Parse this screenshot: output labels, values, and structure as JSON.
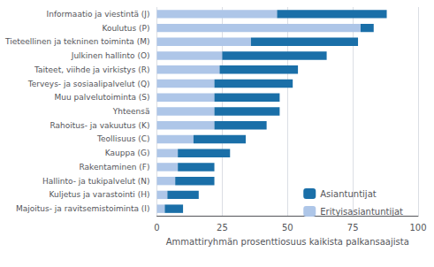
{
  "chart_data": {
    "type": "bar",
    "orientation": "horizontal",
    "stacked": true,
    "xlabel": "Ammattiryhmän prosenttiosuus kaikista palkansaajista",
    "categories": [
      "Informaatio ja viestintä (J)",
      "Koulutus (P)",
      "Tieteellinen ja tekninen toiminta (M)",
      "Julkinen hallinto (O)",
      "Taiteet, viihde ja virkistys (R)",
      "Terveys- ja sosiaalipalvelut (Q)",
      "Muu palvelutoiminta (S)",
      "Yhteensä",
      "Rahoitus- ja vakuutus (K)",
      "Teollisuus (C)",
      "Kauppa (G)",
      "Rakentaminen (F)",
      "Hallinto- ja tukipalvelut (N)",
      "Kuljetus ja varastointi (H)",
      "Majoitus- ja ravitsemistoiminta (I)"
    ],
    "series": [
      {
        "name": "Erityisasiantuntijat",
        "color": "#aec6e8",
        "values": [
          46,
          78,
          36,
          25,
          24,
          22,
          22,
          22,
          22,
          14,
          8,
          8,
          7,
          4,
          3
        ]
      },
      {
        "name": "Asiantuntijat",
        "color": "#1a6fa8",
        "values": [
          42,
          5,
          41,
          40,
          30,
          30,
          25,
          25,
          20,
          20,
          20,
          14,
          15,
          12,
          7
        ]
      }
    ],
    "xlim": [
      0,
      100
    ],
    "xticks": [
      0,
      25,
      50,
      75,
      100
    ],
    "grid": true,
    "legend": "lower right"
  }
}
